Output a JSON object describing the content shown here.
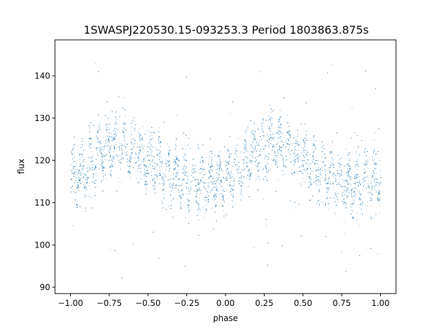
{
  "chart_data": {
    "type": "scatter",
    "title": "1SWASPJ220530.15-093253.3 Period 1803863.875s",
    "xlabel": "phase",
    "ylabel": "flux",
    "xlim": [
      -1.1,
      1.1
    ],
    "ylim": [
      88.5,
      148.5
    ],
    "xticks": [
      -1.0,
      -0.75,
      -0.5,
      -0.25,
      0.0,
      0.25,
      0.5,
      0.75,
      1.0
    ],
    "xtick_labels": [
      "−1.00",
      "−0.75",
      "−0.50",
      "−0.25",
      "0.00",
      "0.25",
      "0.50",
      "0.75",
      "1.00"
    ],
    "yticks": [
      90,
      100,
      110,
      120,
      130,
      140
    ],
    "ytick_labels": [
      "90",
      "100",
      "110",
      "120",
      "130",
      "140"
    ],
    "grid": false,
    "point_color": "#1f77b4",
    "trend": {
      "phase": [
        -1.0,
        -0.9,
        -0.8,
        -0.7,
        -0.6,
        -0.5,
        -0.4,
        -0.3,
        -0.2,
        -0.1,
        0.0,
        0.1,
        0.2,
        0.3,
        0.4,
        0.5,
        0.6,
        0.7,
        0.8,
        0.9,
        1.0
      ],
      "flux": [
        116,
        118,
        122,
        124,
        123,
        120,
        118,
        116,
        114,
        115,
        116,
        118,
        122,
        124,
        123,
        120,
        118,
        116,
        114,
        115,
        116
      ]
    }
  }
}
